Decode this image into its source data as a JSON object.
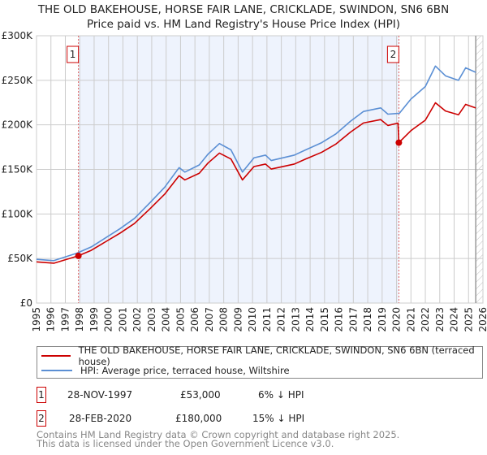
{
  "title": "THE OLD BAKEHOUSE, HORSE FAIR LANE, CRICKLADE, SWINDON, SN6 6BN",
  "subtitle": "Price paid vs. HM Land Registry's House Price Index (HPI)",
  "chart_data": {
    "type": "line",
    "xlim": [
      1995,
      2026
    ],
    "ylim": [
      0,
      300000
    ],
    "yticks": [
      0,
      50000,
      100000,
      150000,
      200000,
      250000,
      300000
    ],
    "ytick_labels": [
      "£0",
      "£50K",
      "£100K",
      "£150K",
      "£200K",
      "£250K",
      "£300K"
    ],
    "xticks": [
      "1995",
      "1996",
      "1997",
      "1998",
      "1999",
      "2000",
      "2001",
      "2002",
      "2003",
      "2004",
      "2005",
      "2006",
      "2007",
      "2008",
      "2009",
      "2010",
      "2011",
      "2012",
      "2013",
      "2014",
      "2015",
      "2016",
      "2017",
      "2018",
      "2019",
      "2020",
      "2021",
      "2022",
      "2023",
      "2024",
      "2025",
      "2026"
    ],
    "grid": true,
    "series": [
      {
        "name": "THE OLD BAKEHOUSE, HORSE FAIR LANE, CRICKLADE, SWINDON, SN6 6BN (terraced house)",
        "color": "#cc0000",
        "x": [
          1995.0,
          1996.2,
          1997.9,
          1998.8,
          2000.8,
          2001.8,
          2002.9,
          2003.9,
          2004.9,
          2005.3,
          2006.3,
          2006.9,
          2007.7,
          2008.5,
          2009.3,
          2010.1,
          2010.9,
          2011.3,
          2012.9,
          2013.7,
          2014.8,
          2015.8,
          2016.8,
          2017.7,
          2018.9,
          2019.4,
          2020.1,
          2020.16,
          2021.0,
          2022.0,
          2022.7,
          2023.4,
          2024.3,
          2024.8,
          2025.5
        ],
        "y": [
          46200,
          44700,
          53000,
          59200,
          78500,
          89300,
          106200,
          122200,
          142900,
          138200,
          145700,
          157000,
          168300,
          161700,
          138200,
          153200,
          156000,
          150400,
          156000,
          161700,
          169200,
          178600,
          191800,
          202100,
          205900,
          199300,
          202000,
          180000,
          193500,
          205300,
          224800,
          215500,
          211300,
          223000,
          219000
        ]
      },
      {
        "name": "HPI: Average price, terraced house, Wiltshire",
        "color": "#5b8fd4",
        "x": [
          1995.0,
          1996.2,
          1997.8,
          1998.8,
          2000.8,
          2001.8,
          2002.9,
          2003.9,
          2004.9,
          2005.3,
          2006.3,
          2006.9,
          2007.7,
          2008.5,
          2009.3,
          2010.1,
          2010.9,
          2011.3,
          2012.9,
          2013.7,
          2014.8,
          2015.8,
          2016.8,
          2017.7,
          2018.9,
          2019.4,
          2020.2,
          2021.0,
          2022.0,
          2022.7,
          2023.4,
          2024.3,
          2024.8,
          2025.5
        ],
        "y": [
          49100,
          47600,
          56000,
          63000,
          83500,
          95000,
          113000,
          130000,
          152000,
          147000,
          155000,
          167000,
          179000,
          172000,
          147000,
          163000,
          166000,
          160000,
          166000,
          172000,
          180000,
          190000,
          204000,
          215000,
          219000,
          212000,
          213000,
          229000,
          243000,
          266000,
          255000,
          250000,
          264000,
          259000
        ]
      }
    ],
    "sales": [
      {
        "label": "1",
        "date": "28-NOV-1997",
        "x": 1997.91,
        "price": "£53,000",
        "value": 53000,
        "hpi": "6% ↓ HPI"
      },
      {
        "label": "2",
        "date": "28-FEB-2020",
        "x": 2020.16,
        "price": "£180,000",
        "value": 180000,
        "hpi": "15% ↓ HPI"
      }
    ],
    "shaded_range": [
      1997.91,
      2020.16
    ],
    "hatched_from": 2025.5
  },
  "footer": [
    "Contains HM Land Registry data © Crown copyright and database right 2025.",
    "This data is licensed under the Open Government Licence v3.0."
  ]
}
